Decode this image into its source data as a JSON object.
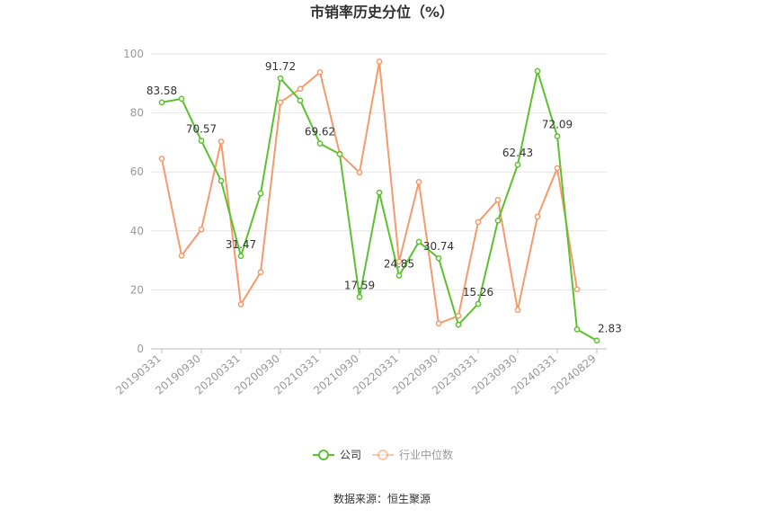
{
  "source_text": "数据来源：恒生聚源",
  "chart_data": {
    "type": "line",
    "title": "市销率历史分位（%）",
    "xlabel": "",
    "ylabel": "",
    "ylim": [
      0,
      100
    ],
    "yticks": [
      0,
      20,
      40,
      60,
      80,
      100
    ],
    "grid": true,
    "legend_position": "bottom-center",
    "x_tick_labels": [
      "20190331",
      "20190930",
      "20200331",
      "20200930",
      "20210331",
      "20210930",
      "20220331",
      "20220930",
      "20230331",
      "20230930",
      "20240331",
      "20240829"
    ],
    "series": [
      {
        "name": "公司",
        "color": "#5cc12f",
        "x": [
          "20190331",
          "20190630",
          "20190930",
          "20191231",
          "20200331",
          "20200630",
          "20200930",
          "20201231",
          "20210331",
          "20210630",
          "20210930",
          "20211231",
          "20220331",
          "20220630",
          "20220930",
          "20221231",
          "20230331",
          "20230630",
          "20230930",
          "20231231",
          "20240331",
          "20240630",
          "20240829"
        ],
        "values": [
          83.58,
          84.8,
          70.57,
          57.0,
          31.47,
          52.7,
          91.72,
          84.2,
          69.62,
          66.0,
          17.59,
          53.0,
          24.85,
          36.3,
          30.74,
          8.2,
          15.26,
          43.5,
          62.43,
          94.2,
          72.09,
          6.6,
          2.83
        ],
        "labels": {
          "20190331": "83.58",
          "20190930": "70.57",
          "20200331": "31.47",
          "20200930": "91.72",
          "20210331": "69.62",
          "20210930": "17.59",
          "20220331": "24.85",
          "20220930": "30.74",
          "20230331": "15.26",
          "20230930": "62.43",
          "20240331": "72.09",
          "20240829": "2.83"
        }
      },
      {
        "name": "行业中位数",
        "color": "#f59a6b",
        "x": [
          "20190331",
          "20190630",
          "20190930",
          "20191231",
          "20200331",
          "20200630",
          "20200930",
          "20201231",
          "20210331",
          "20210630",
          "20210930",
          "20211231",
          "20220331",
          "20220630",
          "20220930",
          "20221231",
          "20230331",
          "20230630",
          "20230930",
          "20231231",
          "20240331",
          "20240630"
        ],
        "values": [
          64.5,
          31.6,
          40.5,
          70.3,
          15.1,
          26.0,
          83.6,
          88.2,
          93.8,
          66.2,
          59.8,
          97.4,
          29.6,
          56.6,
          8.6,
          11.2,
          43.0,
          50.5,
          13.2,
          44.8,
          61.3,
          20.2
        ]
      }
    ]
  }
}
